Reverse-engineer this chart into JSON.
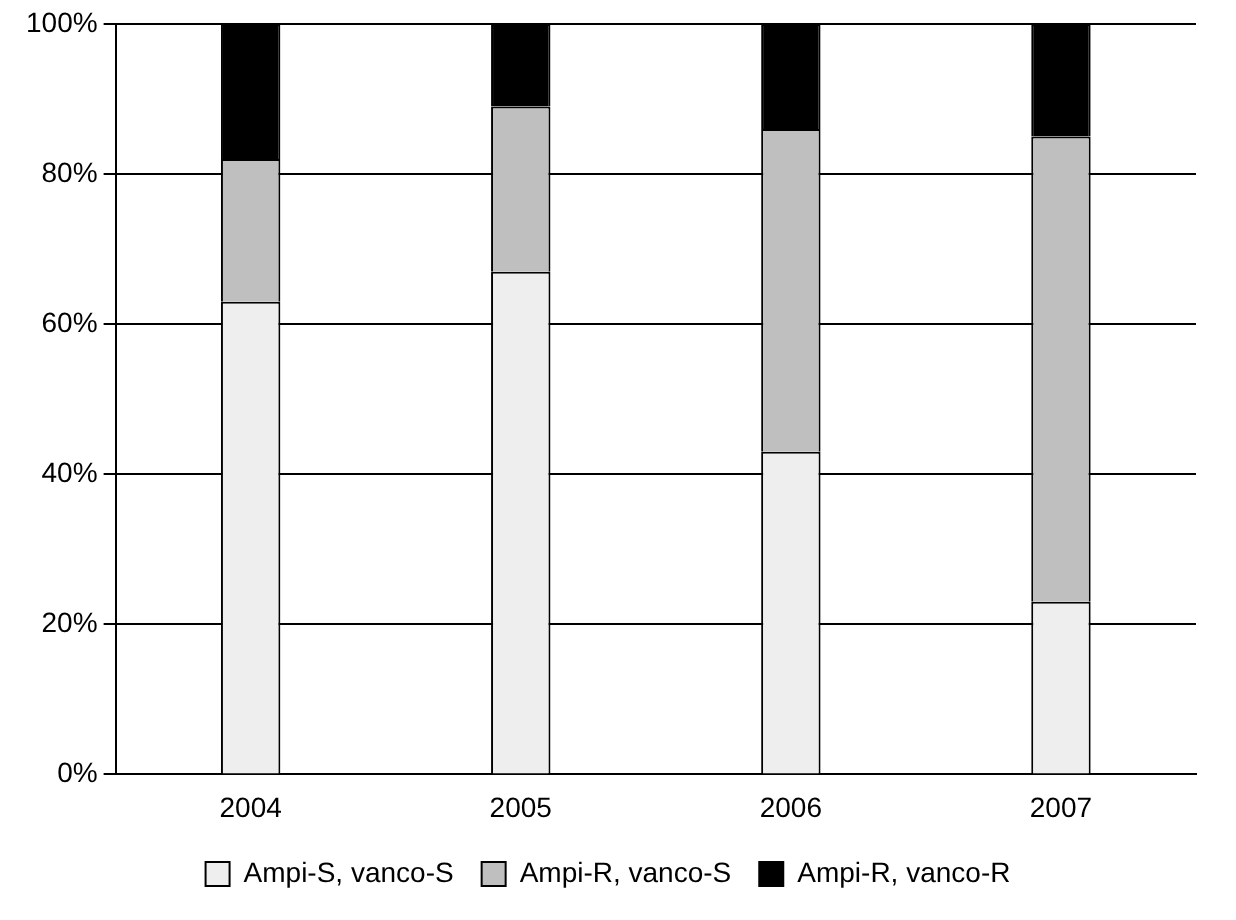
{
  "chart_data": {
    "type": "bar",
    "stacked": true,
    "categories": [
      "2004",
      "2005",
      "2006",
      "2007"
    ],
    "series": [
      {
        "name": "Ampi-S, vanco-S",
        "color": "#eeeeee",
        "values": [
          63,
          67,
          43,
          23
        ]
      },
      {
        "name": "Ampi-R, vanco-S",
        "color": "#bfbfbf",
        "values": [
          19,
          22,
          43,
          62
        ]
      },
      {
        "name": "Ampi-R, vanco-R",
        "color": "#000000",
        "values": [
          18,
          11,
          14,
          15
        ]
      }
    ],
    "ylim": [
      0,
      100
    ],
    "yticks": [
      {
        "value": 0,
        "label": "0%"
      },
      {
        "value": 20,
        "label": "20%"
      },
      {
        "value": 40,
        "label": "40%"
      },
      {
        "value": 60,
        "label": "60%"
      },
      {
        "value": 80,
        "label": "80%"
      },
      {
        "value": 100,
        "label": "100%"
      }
    ],
    "grid": "y",
    "legend": "bottom"
  }
}
